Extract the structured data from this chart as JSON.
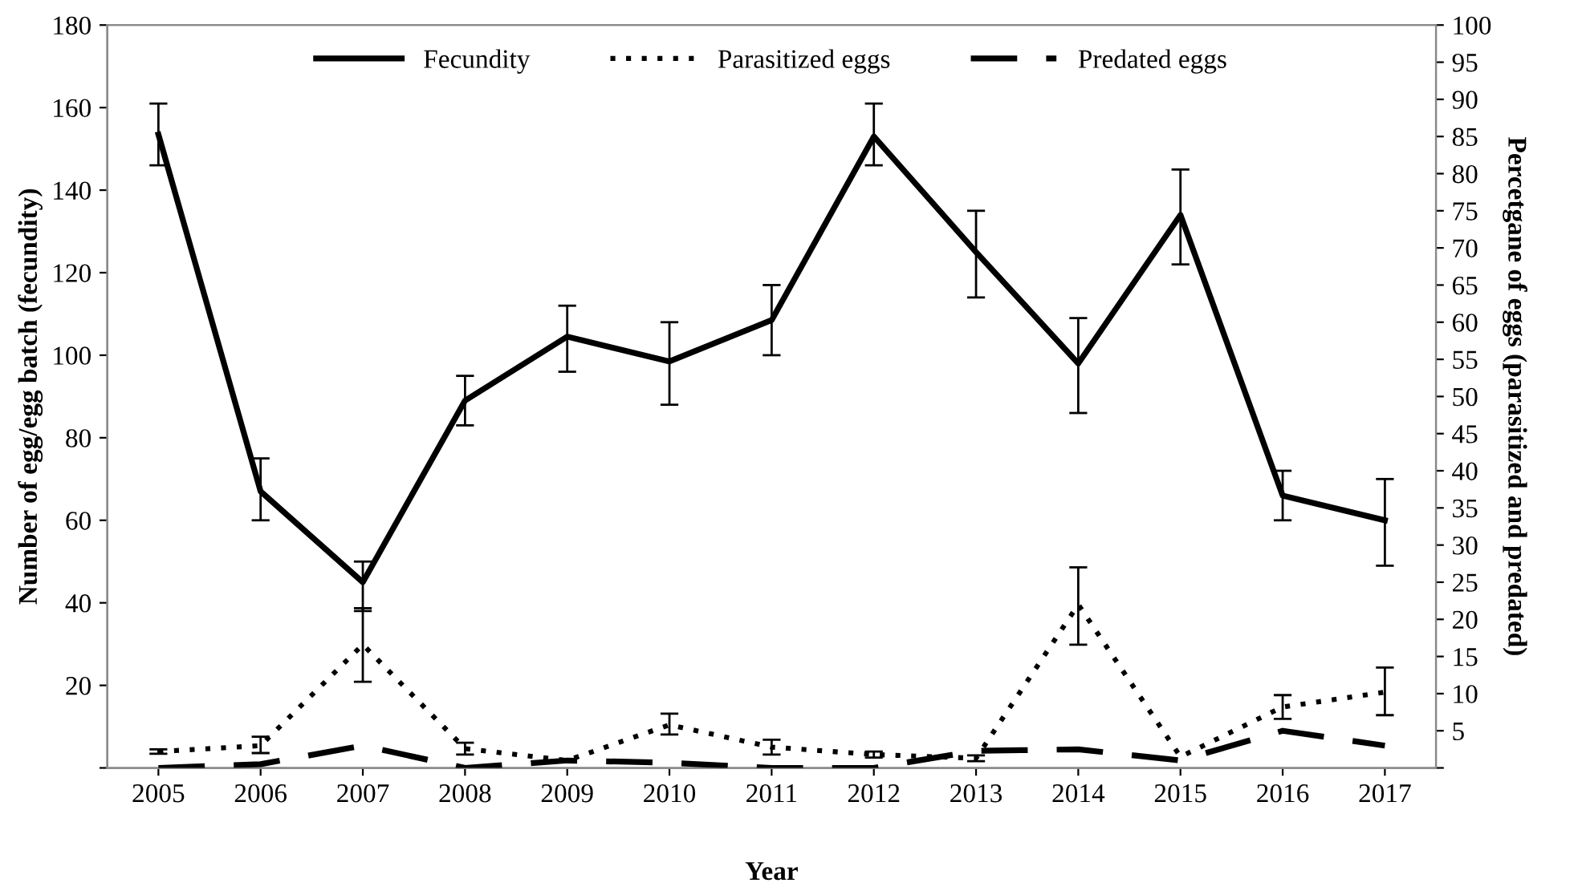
{
  "chart_data": {
    "type": "line",
    "xlabel": "Year",
    "ylabel": "Number of egg/egg batch (fecundity)",
    "y2label": "Percetgane of eggs (parasitized and predated)",
    "categories": [
      "2005",
      "2006",
      "2007",
      "2008",
      "2009",
      "2010",
      "2011",
      "2012",
      "2013",
      "2014",
      "2015",
      "2016",
      "2017"
    ],
    "ylim": [
      0,
      180
    ],
    "yticks": [
      {
        "value": 0,
        "label": null
      },
      20,
      40,
      60,
      80,
      100,
      120,
      140,
      160,
      180
    ],
    "y2lim": [
      0,
      100
    ],
    "y2ticks": [
      {
        "value": 0,
        "label": null
      },
      5,
      10,
      15,
      20,
      25,
      30,
      35,
      40,
      45,
      50,
      55,
      60,
      65,
      70,
      75,
      80,
      85,
      90,
      95,
      100
    ],
    "grid": false,
    "legend": "top",
    "marker": "none",
    "series": [
      {
        "name": "Fecundity",
        "color": "#000000",
        "line_style": "solid",
        "values": [
          153.5,
          67,
          45,
          89,
          104.5,
          98.5,
          108.5,
          153,
          125,
          98,
          134,
          66,
          60
        ],
        "errors": [
          [
            146,
            161
          ],
          [
            60,
            75
          ],
          [
            38,
            50
          ],
          [
            83,
            95
          ],
          [
            96,
            112
          ],
          [
            88,
            108
          ],
          [
            100,
            117
          ],
          [
            146,
            161
          ],
          [
            114,
            135
          ],
          [
            86,
            109
          ],
          [
            122,
            145
          ],
          [
            60,
            72
          ],
          [
            49,
            70
          ]
        ]
      },
      {
        "name": "Parasitized eggs",
        "color": "#000000",
        "line_style": "dotted",
        "axis": "y2",
        "values": [
          2.2,
          3,
          16.6,
          2.6,
          1,
          5.8,
          2.8,
          1.8,
          1.3,
          22,
          1.5,
          8.2,
          10.2
        ],
        "errors": [
          [
            1.9,
            2.5
          ],
          [
            2,
            4.2
          ],
          [
            11.6,
            21.5
          ],
          [
            1.8,
            3.4
          ],
          null,
          [
            4.5,
            7.3
          ],
          [
            1.8,
            3.8
          ],
          [
            1.4,
            2.2
          ],
          [
            0.9,
            1.7
          ],
          [
            16.6,
            27
          ],
          null,
          [
            6.6,
            9.8
          ],
          [
            7.1,
            13.5
          ]
        ]
      },
      {
        "name": "Predated eggs",
        "color": "#000000",
        "line_style": "dashed",
        "axis": "y2",
        "values": [
          0,
          0.5,
          3,
          0,
          1,
          0.7,
          0,
          0,
          2.3,
          2.5,
          1,
          5,
          3
        ]
      }
    ]
  }
}
